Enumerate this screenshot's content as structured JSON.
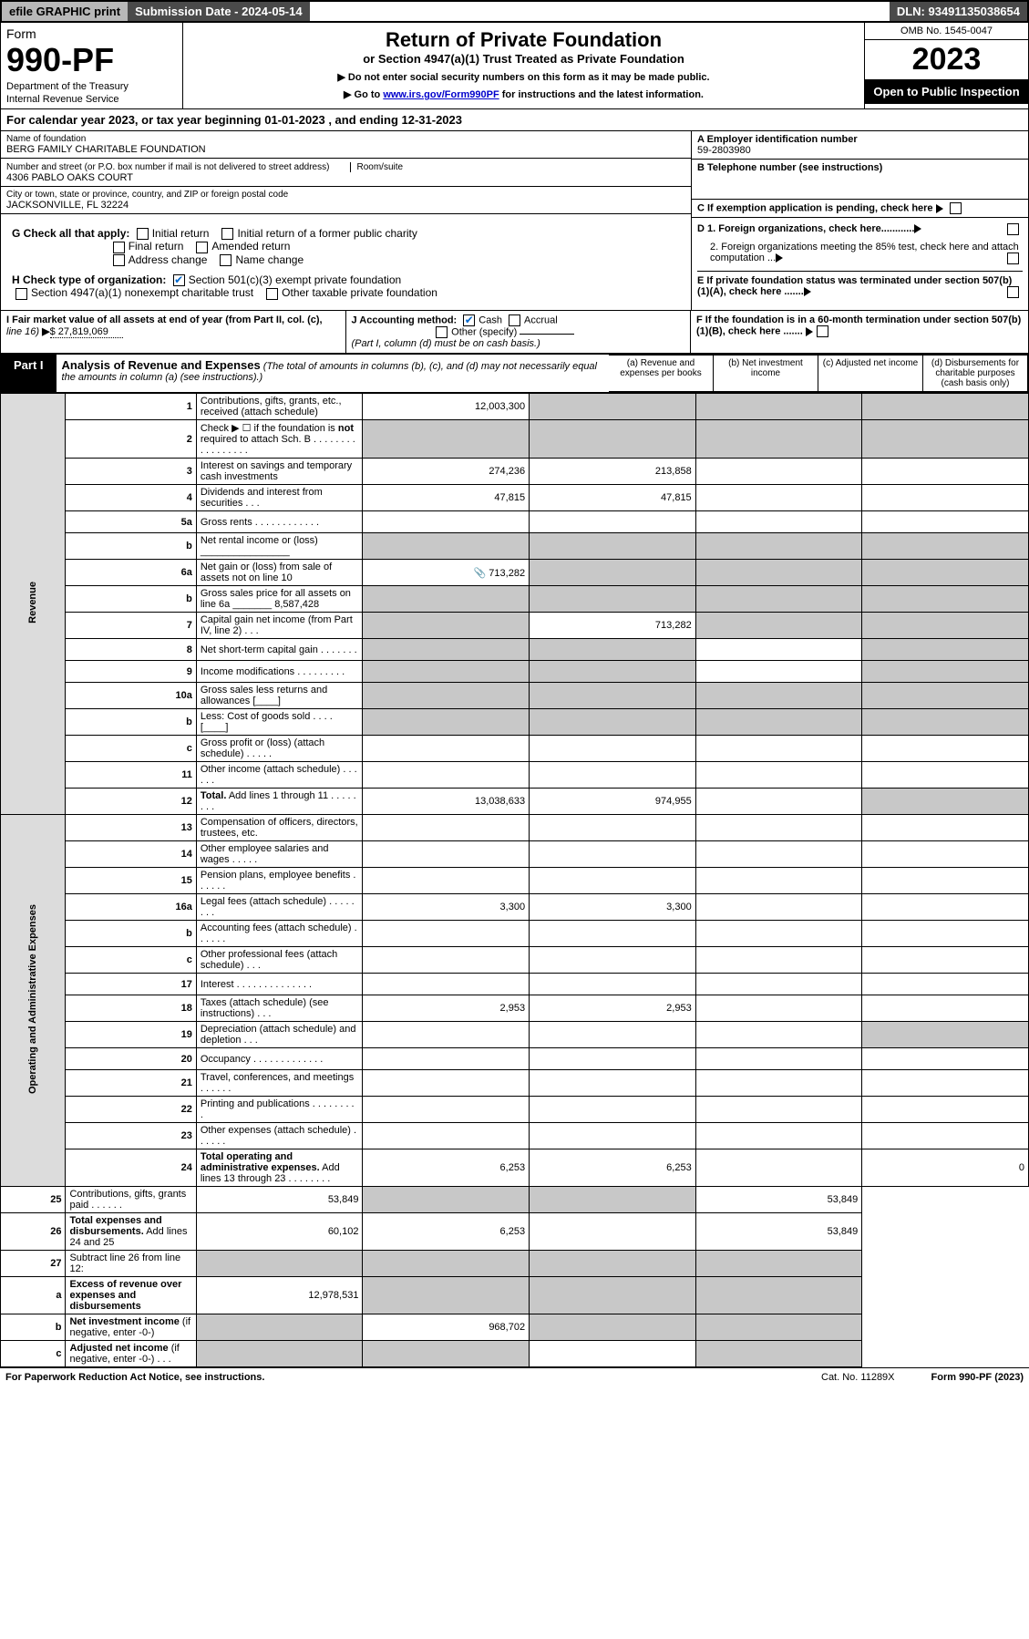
{
  "topbar": {
    "efile": "efile GRAPHIC print",
    "subdate_label": "Submission Date - 2024-05-14",
    "dln": "DLN: 93491135038654"
  },
  "header": {
    "form_word": "Form",
    "form_num": "990-PF",
    "dept1": "Department of the Treasury",
    "dept2": "Internal Revenue Service",
    "title": "Return of Private Foundation",
    "subtitle": "or Section 4947(a)(1) Trust Treated as Private Foundation",
    "note1": "▶ Do not enter social security numbers on this form as it may be made public.",
    "note2_pre": "▶ Go to ",
    "note2_link": "www.irs.gov/Form990PF",
    "note2_post": " for instructions and the latest information.",
    "omb": "OMB No. 1545-0047",
    "year": "2023",
    "open_pub": "Open to Public Inspection"
  },
  "cal_year": "For calendar year 2023, or tax year beginning 01-01-2023            , and ending 12-31-2023",
  "ident": {
    "name_label": "Name of foundation",
    "name": "BERG FAMILY CHARITABLE FOUNDATION",
    "addr_label": "Number and street (or P.O. box number if mail is not delivered to street address)",
    "addr": "4306 PABLO OAKS COURT",
    "room_label": "Room/suite",
    "city_label": "City or town, state or province, country, and ZIP or foreign postal code",
    "city": "JACKSONVILLE, FL  32224",
    "ein_label": "A Employer identification number",
    "ein": "59-2803980",
    "tel_label": "B Telephone number (see instructions)",
    "c_label": "C If exemption application is pending, check here"
  },
  "checks": {
    "g_label": "G Check all that apply:",
    "g_opts": [
      "Initial return",
      "Initial return of a former public charity",
      "Final return",
      "Amended return",
      "Address change",
      "Name change"
    ],
    "h_label": "H Check type of organization:",
    "h1": "Section 501(c)(3) exempt private foundation",
    "h2": "Section 4947(a)(1) nonexempt charitable trust",
    "h3": "Other taxable private foundation",
    "d1": "D 1. Foreign organizations, check here............",
    "d2": "2. Foreign organizations meeting the 85% test, check here and attach computation ...",
    "e": "E  If private foundation status was terminated under section 507(b)(1)(A), check here .......",
    "f": "F  If the foundation is in a 60-month termination under section 507(b)(1)(B), check here ......."
  },
  "ij": {
    "i_label": "I Fair market value of all assets at end of year (from Part II, col. (c),",
    "i_line": "line 16)",
    "i_val": "$  27,819,069",
    "j_label": "J Accounting method:",
    "j_cash": "Cash",
    "j_accr": "Accrual",
    "j_other": "Other (specify)",
    "j_note": "(Part I, column (d) must be on cash basis.)"
  },
  "part1": {
    "tag": "Part I",
    "title": "Analysis of Revenue and Expenses",
    "note": "(The total of amounts in columns (b), (c), and (d) may not necessarily equal the amounts in column (a) (see instructions).)",
    "col_a": "(a)   Revenue and expenses per books",
    "col_b": "(b)   Net investment income",
    "col_c": "(c)   Adjusted net income",
    "col_d": "(d)  Disbursements for charitable purposes (cash basis only)"
  },
  "side_rev": "Revenue",
  "side_exp": "Operating and Administrative Expenses",
  "rows": [
    {
      "n": "1",
      "d": "Contributions, gifts, grants, etc., received (attach schedule)",
      "a": "12,003,300",
      "grey": [
        "b",
        "c",
        "d"
      ]
    },
    {
      "n": "2",
      "d": "Check ▶ ☐ if the foundation is <b>not</b> required to attach Sch. B   .  .  .  .  .  .  .  .  .  .  .  .  .  .  .  .  .",
      "grey": [
        "a",
        "b",
        "c",
        "d"
      ]
    },
    {
      "n": "3",
      "d": "Interest on savings and temporary cash investments",
      "a": "274,236",
      "b": "213,858"
    },
    {
      "n": "4",
      "d": "Dividends and interest from securities   .  .  .",
      "a": "47,815",
      "b": "47,815"
    },
    {
      "n": "5a",
      "d": "Gross rents    .  .  .  .  .  .  .  .  .  .  .  ."
    },
    {
      "n": "b",
      "d": "Net rental income or (loss) ________________",
      "grey": [
        "a",
        "b",
        "c",
        "d"
      ]
    },
    {
      "n": "6a",
      "d": "Net gain or (loss) from sale of assets not on line 10",
      "a": "713,282",
      "icon": true,
      "grey": [
        "b",
        "c",
        "d"
      ]
    },
    {
      "n": "b",
      "d": "Gross sales price for all assets on line 6a _______ 8,587,428",
      "grey": [
        "a",
        "b",
        "c",
        "d"
      ]
    },
    {
      "n": "7",
      "d": "Capital gain net income (from Part IV, line 2)   .  .  .",
      "b": "713,282",
      "grey": [
        "a",
        "c",
        "d"
      ]
    },
    {
      "n": "8",
      "d": "Net short-term capital gain   .  .  .  .  .  .  .",
      "grey": [
        "a",
        "b",
        "d"
      ]
    },
    {
      "n": "9",
      "d": "Income modifications  .  .  .  .  .  .  .  .  .",
      "grey": [
        "a",
        "b",
        "d"
      ]
    },
    {
      "n": "10a",
      "d": "Gross sales less returns and allowances  [____]",
      "grey": [
        "a",
        "b",
        "c",
        "d"
      ]
    },
    {
      "n": "b",
      "d": "Less: Cost of goods sold   .  .  .  .  [____]",
      "grey": [
        "a",
        "b",
        "c",
        "d"
      ]
    },
    {
      "n": "c",
      "d": "Gross profit or (loss) (attach schedule)   .  .  .  .  ."
    },
    {
      "n": "11",
      "d": "Other income (attach schedule)   .  .  .  .  .  ."
    },
    {
      "n": "12",
      "d": "<b>Total.</b> Add lines 1 through 11   .  .  .  .  .  .  .  .",
      "a": "13,038,633",
      "b": "974,955",
      "grey": [
        "d"
      ]
    },
    {
      "n": "13",
      "d": "Compensation of officers, directors, trustees, etc."
    },
    {
      "n": "14",
      "d": "Other employee salaries and wages   .  .  .  .  ."
    },
    {
      "n": "15",
      "d": "Pension plans, employee benefits  .  .  .  .  .  ."
    },
    {
      "n": "16a",
      "d": "Legal fees (attach schedule)  .  .  .  .  .  .  .  .",
      "a": "3,300",
      "b": "3,300"
    },
    {
      "n": "b",
      "d": "Accounting fees (attach schedule)  .  .  .  .  .  ."
    },
    {
      "n": "c",
      "d": "Other professional fees (attach schedule)   .  .  ."
    },
    {
      "n": "17",
      "d": "Interest .  .  .  .  .  .  .  .  .  .  .  .  .  ."
    },
    {
      "n": "18",
      "d": "Taxes (attach schedule) (see instructions)   .  .  .",
      "a": "2,953",
      "b": "2,953"
    },
    {
      "n": "19",
      "d": "Depreciation (attach schedule) and depletion   .  .  .",
      "grey": [
        "d"
      ]
    },
    {
      "n": "20",
      "d": "Occupancy  .  .  .  .  .  .  .  .  .  .  .  .  ."
    },
    {
      "n": "21",
      "d": "Travel, conferences, and meetings  .  .  .  .  .  ."
    },
    {
      "n": "22",
      "d": "Printing and publications  .  .  .  .  .  .  .  .  ."
    },
    {
      "n": "23",
      "d": "Other expenses (attach schedule)   .  .  .  .  .  ."
    },
    {
      "n": "24",
      "d": "<b>Total operating and administrative expenses.</b> Add lines 13 through 23   .  .  .  .  .  .  .  .",
      "a": "6,253",
      "b": "6,253",
      "c": "",
      "dd": "0"
    },
    {
      "n": "25",
      "d": "Contributions, gifts, grants paid   .  .  .  .  .  .",
      "a": "53,849",
      "dd": "53,849",
      "grey": [
        "b",
        "c"
      ]
    },
    {
      "n": "26",
      "d": "<b>Total expenses and disbursements.</b> Add lines 24 and 25",
      "a": "60,102",
      "b": "6,253",
      "dd": "53,849"
    },
    {
      "n": "27",
      "d": "Subtract line 26 from line 12:",
      "grey": [
        "a",
        "b",
        "c",
        "d"
      ]
    },
    {
      "n": "a",
      "d": "<b>Excess of revenue over expenses and disbursements</b>",
      "a": "12,978,531",
      "grey": [
        "b",
        "c",
        "d"
      ]
    },
    {
      "n": "b",
      "d": "<b>Net investment income</b> (if negative, enter -0-)",
      "b": "968,702",
      "grey": [
        "a",
        "c",
        "d"
      ]
    },
    {
      "n": "c",
      "d": "<b>Adjusted net income</b> (if negative, enter -0-)   .  .  .",
      "grey": [
        "a",
        "b",
        "d"
      ]
    }
  ],
  "footer": {
    "left": "For Paperwork Reduction Act Notice, see instructions.",
    "mid": "Cat. No. 11289X",
    "right": "Form 990-PF (2023)"
  }
}
